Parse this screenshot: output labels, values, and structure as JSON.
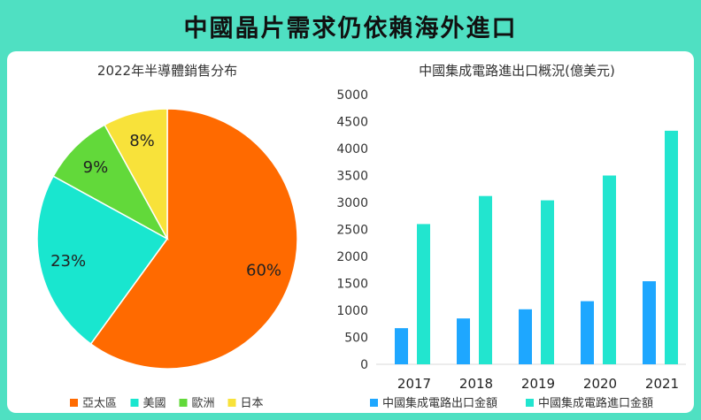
{
  "page_title": "中國晶片需求仍依賴海外進口",
  "colors": {
    "background": "#4fe0c2",
    "asia_pacific": "#ff6a00",
    "usa": "#19e6cf",
    "europe": "#62d93a",
    "japan": "#f8e23a",
    "export_bar": "#1ea7ff",
    "import_bar": "#22e5cf"
  },
  "chart_data": [
    {
      "type": "pie",
      "title": "2022年半導體銷售分布",
      "slices": [
        {
          "name": "亞太區",
          "value": 60,
          "label": "60%"
        },
        {
          "name": "美國",
          "value": 23,
          "label": "23%"
        },
        {
          "name": "歐洲",
          "value": 9,
          "label": "9%"
        },
        {
          "name": "日本",
          "value": 8,
          "label": "8%"
        }
      ],
      "legend_position": "bottom"
    },
    {
      "type": "bar",
      "title": "中國集成電路進出口概況(億美元)",
      "categories": [
        "2017",
        "2018",
        "2019",
        "2020",
        "2021"
      ],
      "series": [
        {
          "name": "中國集成電路出口金額",
          "values": [
            670,
            850,
            1020,
            1170,
            1540
          ]
        },
        {
          "name": "中國集成電路進口金額",
          "values": [
            2600,
            3120,
            3040,
            3500,
            4330
          ]
        }
      ],
      "ylim": [
        0,
        5000
      ],
      "yticks": [
        "0",
        "500",
        "1000",
        "1500",
        "2000",
        "2500",
        "3000",
        "3500",
        "4000",
        "4500",
        "5000"
      ],
      "grid": false,
      "legend_position": "bottom"
    }
  ]
}
